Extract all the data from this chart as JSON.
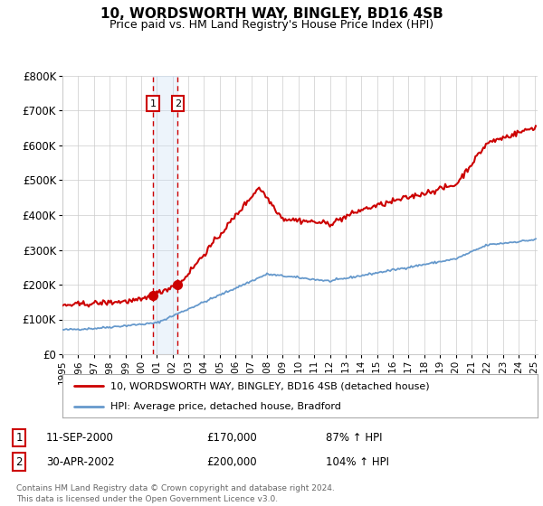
{
  "title": "10, WORDSWORTH WAY, BINGLEY, BD16 4SB",
  "subtitle": "Price paid vs. HM Land Registry's House Price Index (HPI)",
  "ylim": [
    0,
    800000
  ],
  "yticks": [
    0,
    100000,
    200000,
    300000,
    400000,
    500000,
    600000,
    700000,
    800000
  ],
  "ytick_labels": [
    "£0",
    "£100K",
    "£200K",
    "£300K",
    "£400K",
    "£500K",
    "£600K",
    "£700K",
    "£800K"
  ],
  "sale1_date": 2000.75,
  "sale1_price": 170000,
  "sale1_label": "1",
  "sale1_display": "11-SEP-2000",
  "sale1_amount": "£170,000",
  "sale1_hpi": "87% ↑ HPI",
  "sale2_date": 2002.33,
  "sale2_price": 200000,
  "sale2_label": "2",
  "sale2_display": "30-APR-2002",
  "sale2_amount": "£200,000",
  "sale2_hpi": "104% ↑ HPI",
  "red_line_color": "#cc0000",
  "blue_line_color": "#6699cc",
  "shade_color": "#cce0f5",
  "vline_color": "#cc0000",
  "grid_color": "#cccccc",
  "background_color": "#ffffff",
  "legend_line1": "10, WORDSWORTH WAY, BINGLEY, BD16 4SB (detached house)",
  "legend_line2": "HPI: Average price, detached house, Bradford",
  "footer": "Contains HM Land Registry data © Crown copyright and database right 2024.\nThis data is licensed under the Open Government Licence v3.0.",
  "box_color": "#cc0000",
  "title_fontsize": 11,
  "subtitle_fontsize": 9
}
